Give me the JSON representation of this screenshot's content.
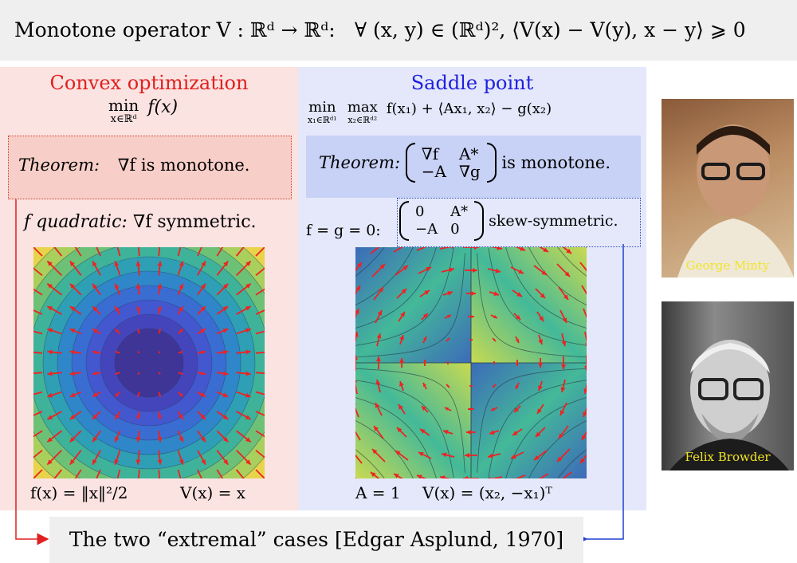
{
  "header": {
    "part1": "Monotone operator V : ℝᵈ → ℝᵈ:",
    "part2": "∀ (x, y) ∈ (ℝᵈ)², ⟨V(x) − V(y), x − y⟩ ⩾ 0"
  },
  "convex": {
    "title": "Convex optimization",
    "objective_op": "min",
    "objective_sub": "x∈ℝᵈ",
    "objective_fn": "f(x)",
    "theorem_label": "Theorem:",
    "theorem_text": "∇f is monotone.",
    "quadratic_label": "f quadratic:",
    "quadratic_text": "∇f symmetric.",
    "caption_f": "f(x) = ‖x‖²/2",
    "caption_v": "V(x) = x"
  },
  "saddle": {
    "title": "Saddle point",
    "min_op": "min",
    "min_sub": "x₁∈ℝᵈ¹",
    "max_op": "max",
    "max_sub": "x₂∈ℝᵈ²",
    "objective_fn": "f(x₁) + ⟨Ax₁, x₂⟩ − g(x₂)",
    "theorem_label": "Theorem:",
    "theorem_matrix": [
      "∇f",
      "A*",
      "−A",
      "∇g"
    ],
    "theorem_text": "is monotone.",
    "fg_label": "f = g = 0:",
    "skew_matrix": [
      "0",
      "A*",
      "−A",
      "0"
    ],
    "skew_text": "skew-symmetric.",
    "caption_a": "A = 1",
    "caption_v": "V(x) = (x₂, −x₁)ᵀ"
  },
  "photos": {
    "minty_caption": "George Minty",
    "browder_caption": "Felix Browder"
  },
  "footer": {
    "text": "The two “extremal” cases [Edgar Asplund, 1970]"
  },
  "colors": {
    "convex_accent": "#e02020",
    "saddle_accent": "#2020dd",
    "arrow": "#ee2222",
    "footer_arrow_red": "#e02020",
    "footer_arrow_blue": "#2040d0"
  }
}
